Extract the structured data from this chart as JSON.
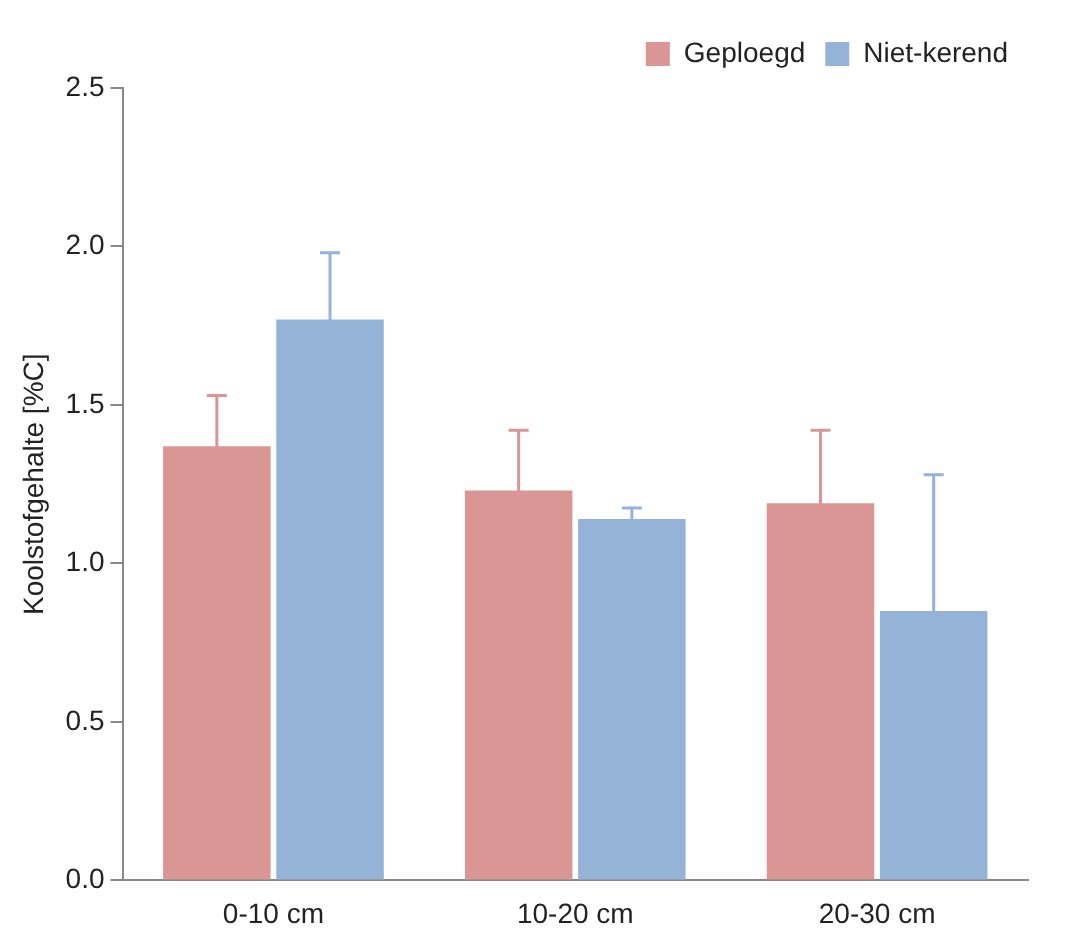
{
  "chart_data": {
    "type": "bar",
    "ylabel": "Koolstofgehalte [%C]",
    "categories": [
      "0-10 cm",
      "10-20 cm",
      "20-30 cm"
    ],
    "series": [
      {
        "name": "Geploegd",
        "color": "#d99694",
        "values": [
          1.37,
          1.23,
          1.19
        ],
        "errors": [
          0.16,
          0.19,
          0.23
        ]
      },
      {
        "name": "Niet-kerend",
        "color": "#95b3d7",
        "values": [
          1.77,
          1.14,
          0.85
        ],
        "errors": [
          0.21,
          0.035,
          0.43
        ]
      }
    ],
    "ylim": [
      0,
      2.5
    ],
    "yticks": [
      {
        "value": 0,
        "label": "0.0"
      },
      {
        "value": 0.5,
        "label": "0.5"
      },
      {
        "value": 1,
        "label": "1.0"
      },
      {
        "value": 1.5,
        "label": "1.5"
      },
      {
        "value": 2,
        "label": "2.0"
      },
      {
        "value": 2.5,
        "label": "2.5"
      }
    ],
    "grid": false,
    "legend": "top right"
  }
}
